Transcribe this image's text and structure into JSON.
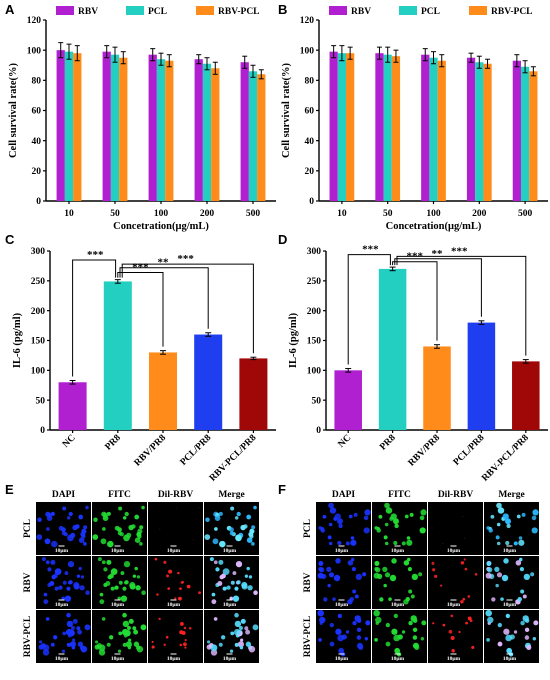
{
  "colors": {
    "RBV": "#b020d0",
    "PCL": "#22cfc0",
    "RBV-PCL": "#ff8c1a",
    "NC": "#b020d0",
    "PR8": "#22cfc0",
    "RBV/PR8": "#ff8c1a",
    "PCL/PR8": "#1f3ef0",
    "RBV-PCL/PR8": "#a00808"
  },
  "chart_data": [
    {
      "id": "A",
      "panel_label": "A",
      "type": "bar",
      "categories": [
        "10",
        "50",
        "100",
        "200",
        "500"
      ],
      "series": [
        {
          "name": "RBV",
          "values": [
            100,
            99,
            97,
            94,
            92
          ],
          "errors": [
            5,
            4,
            4,
            3,
            4
          ]
        },
        {
          "name": "PCL",
          "values": [
            99,
            97,
            94,
            91,
            86
          ],
          "errors": [
            5,
            5,
            4,
            4,
            4
          ]
        },
        {
          "name": "RBV-PCL",
          "values": [
            98,
            95,
            93,
            88,
            84
          ],
          "errors": [
            5,
            4,
            4,
            4,
            3
          ]
        }
      ],
      "xlabel": "Concetration(μg/mL)",
      "ylabel": "Cell survival rate(%)",
      "ylim": [
        0,
        120
      ],
      "yticks": [
        0,
        20,
        40,
        60,
        80,
        100,
        120
      ],
      "legend": "top"
    },
    {
      "id": "B",
      "panel_label": "B",
      "type": "bar",
      "categories": [
        "10",
        "50",
        "100",
        "200",
        "500"
      ],
      "series": [
        {
          "name": "RBV",
          "values": [
            99,
            98,
            97,
            95,
            93
          ],
          "errors": [
            4,
            4,
            4,
            3,
            4
          ]
        },
        {
          "name": "PCL",
          "values": [
            98,
            97,
            95,
            92,
            89
          ],
          "errors": [
            5,
            5,
            4,
            4,
            4
          ]
        },
        {
          "name": "RBV-PCL",
          "values": [
            98,
            96,
            93,
            91,
            86
          ],
          "errors": [
            4,
            4,
            4,
            3,
            3
          ]
        }
      ],
      "xlabel": "Concetration(μg/mL)",
      "ylabel": "Cell survival rate(%)",
      "ylim": [
        0,
        120
      ],
      "yticks": [
        0,
        20,
        40,
        60,
        80,
        100,
        120
      ],
      "legend": "top"
    },
    {
      "id": "C",
      "panel_label": "C",
      "type": "bar",
      "categories": [
        "NC",
        "PR8",
        "RBV/PR8",
        "PCL/PR8",
        "RBV-PCL/PR8"
      ],
      "values": [
        80,
        249,
        130,
        160,
        120
      ],
      "errors": [
        3,
        3,
        3,
        3,
        2
      ],
      "ylabel": "IL-6 (pg/ml)",
      "ylim": [
        0,
        300
      ],
      "yticks": [
        0,
        50,
        100,
        150,
        200,
        250,
        300
      ],
      "significance": [
        {
          "from": 1,
          "to": 0,
          "label": "***",
          "level": 285
        },
        {
          "from": 1,
          "to": 2,
          "label": "***",
          "level": 264
        },
        {
          "from": 1,
          "to": 3,
          "label": "**",
          "level": 272
        },
        {
          "from": 1,
          "to": 4,
          "label": "***",
          "level": 278
        }
      ]
    },
    {
      "id": "D",
      "panel_label": "D",
      "type": "bar",
      "categories": [
        "NC",
        "PR8",
        "RBV/PR8",
        "PCL/PR8",
        "RBV-PCL/PR8"
      ],
      "values": [
        100,
        270,
        140,
        180,
        115
      ],
      "errors": [
        3,
        3,
        3,
        3,
        3
      ],
      "ylabel": "IL-6 (pg/ml)",
      "ylim": [
        0,
        300
      ],
      "yticks": [
        0,
        50,
        100,
        150,
        200,
        250,
        300
      ],
      "significance": [
        {
          "from": 1,
          "to": 0,
          "label": "***",
          "level": 294
        },
        {
          "from": 1,
          "to": 2,
          "label": "***",
          "level": 282
        },
        {
          "from": 1,
          "to": 3,
          "label": "**",
          "level": 287
        },
        {
          "from": 1,
          "to": 4,
          "label": "***",
          "level": 291
        }
      ]
    }
  ],
  "micrographs": [
    {
      "id": "E",
      "panel_label": "E",
      "columns": [
        "DAPI",
        "FITC",
        "Dil-RBV",
        "Merge"
      ],
      "rows": [
        "PCL",
        "RBV",
        "RBV-PCL"
      ],
      "scale_label": "10μm",
      "channel_colors": [
        "#1a33ff",
        "#22dd33",
        "#ff2222",
        "#55ddff"
      ]
    },
    {
      "id": "F",
      "panel_label": "F",
      "columns": [
        "DAPI",
        "FITC",
        "Dil-RBV",
        "Merge"
      ],
      "rows": [
        "PCL",
        "RBV",
        "RBV-PCL"
      ],
      "scale_label": "10μm",
      "channel_colors": [
        "#1a33ff",
        "#22dd33",
        "#ff2222",
        "#55ddff"
      ]
    }
  ]
}
